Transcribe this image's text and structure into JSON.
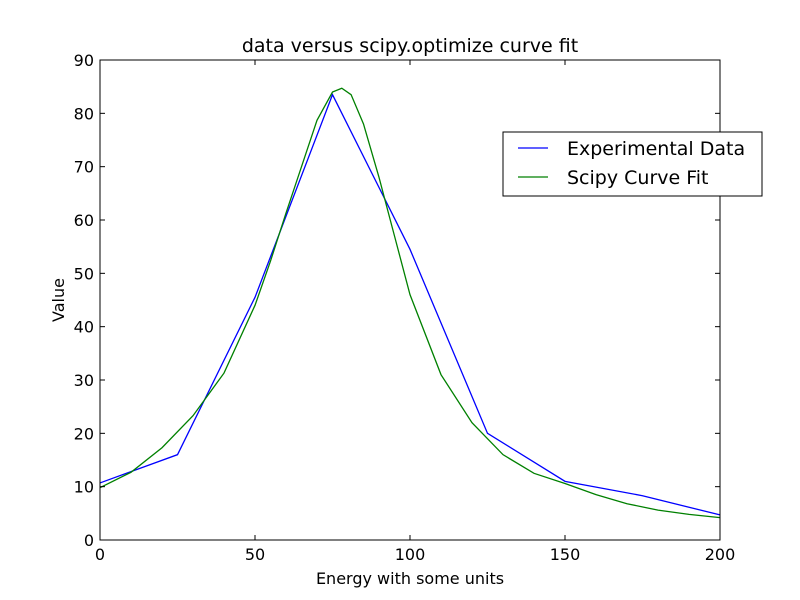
{
  "chart_data": {
    "type": "line",
    "title": "data versus scipy.optimize curve fit",
    "xlabel": "Energy with some units",
    "ylabel": "Value",
    "xlim": [
      0,
      200
    ],
    "ylim": [
      0,
      90
    ],
    "xticks": [
      0,
      50,
      100,
      150,
      200
    ],
    "yticks": [
      0,
      10,
      20,
      30,
      40,
      50,
      60,
      70,
      80,
      90
    ],
    "grid": false,
    "legend_position": "upper right",
    "series": [
      {
        "name": "Experimental Data",
        "color": "#0000ff",
        "x": [
          0,
          25,
          50,
          75,
          100,
          125,
          150,
          175,
          200
        ],
        "y": [
          10.7,
          16.0,
          45.5,
          83.5,
          54.5,
          20.0,
          11.0,
          8.3,
          4.7
        ]
      },
      {
        "name": "Scipy Curve Fit",
        "color": "#008000",
        "x": [
          0,
          10,
          20,
          30,
          40,
          50,
          55,
          60,
          65,
          70,
          75,
          78,
          81,
          85,
          90,
          95,
          100,
          110,
          120,
          130,
          140,
          150,
          160,
          170,
          180,
          190,
          200
        ],
        "y": [
          9.8,
          12.7,
          17.3,
          23.3,
          31.3,
          44.0,
          52.3,
          61.3,
          70.0,
          78.7,
          84.0,
          84.7,
          83.5,
          78.0,
          68.0,
          57.0,
          46.0,
          31.0,
          22.0,
          16.0,
          12.5,
          10.6,
          8.5,
          6.8,
          5.6,
          4.8,
          4.2
        ]
      }
    ]
  }
}
